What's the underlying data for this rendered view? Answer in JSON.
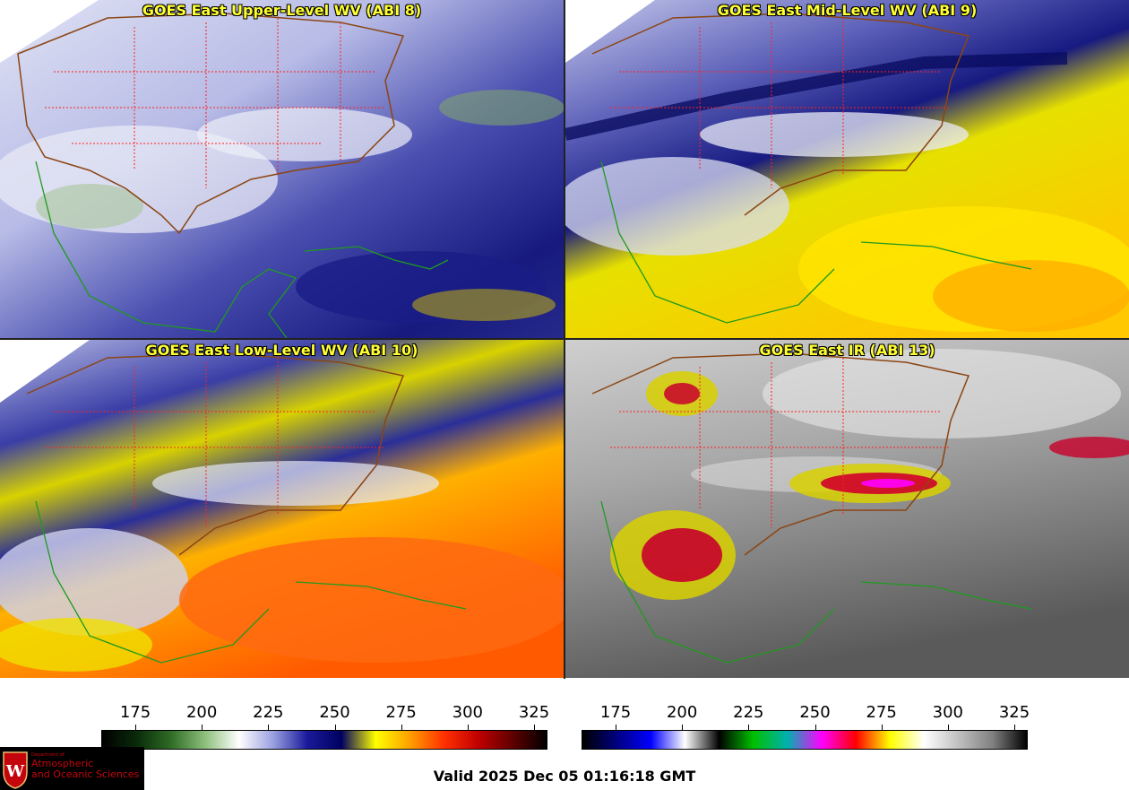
{
  "panels": [
    {
      "id": "p1",
      "title": "GOES East Upper-Level WV (ABI 8)"
    },
    {
      "id": "p2",
      "title": "GOES East Mid-Level WV (ABI 9)"
    },
    {
      "id": "p3",
      "title": "GOES East Low-Level WV (ABI 10)"
    },
    {
      "id": "p4",
      "title": "GOES East IR (ABI 13)"
    }
  ],
  "colorbars": {
    "wv": {
      "ticks": [
        "175",
        "200",
        "225",
        "250",
        "275",
        "300",
        "325"
      ],
      "colors": [
        "#000000",
        "#0a2a0a",
        "#2e6b24",
        "#8cbf7a",
        "#ffffff",
        "#9aa0e0",
        "#1a1a9a",
        "#000060",
        "#ffff00",
        "#ffa000",
        "#ff3000",
        "#c00000",
        "#600000",
        "#000000"
      ]
    },
    "ir": {
      "ticks": [
        "175",
        "200",
        "225",
        "250",
        "275",
        "300",
        "325"
      ],
      "colors": [
        "#000000",
        "#000080",
        "#0000ff",
        "#ffffff",
        "#000000",
        "#00c000",
        "#00b0b0",
        "#ff00ff",
        "#ff0000",
        "#ffff00",
        "#ffffff",
        "#c0c0c0",
        "#808080",
        "#000000"
      ]
    }
  },
  "logo": {
    "line1": "Department of",
    "line2": "Atmospheric",
    "line3": "and Oceanic Sciences",
    "mark": "W"
  },
  "valid_time": "Valid 2025 Dec 05 01:16:18 GMT"
}
